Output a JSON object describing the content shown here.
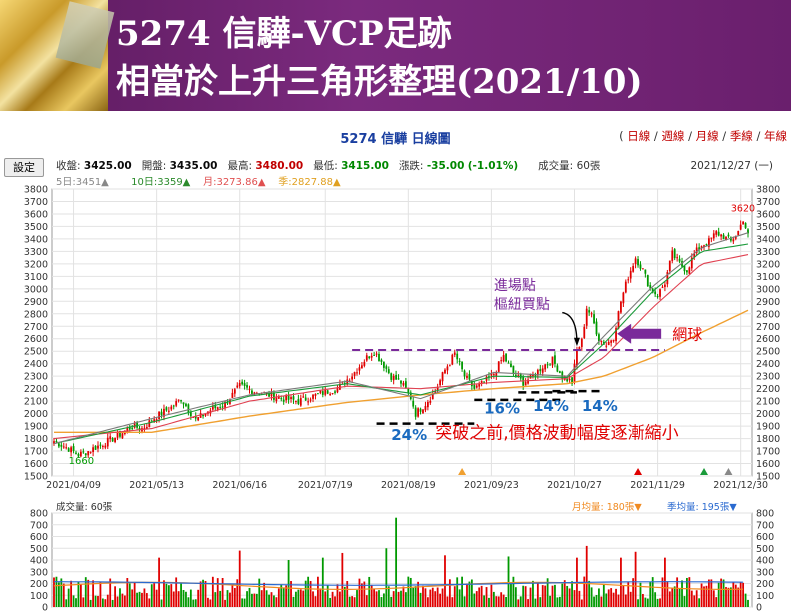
{
  "banner": {
    "title_line1": "5274 信驊-VCP足跡",
    "title_line2": "相當於上升三角形整理(2021/10)"
  },
  "chart_header": {
    "title": "5274 信驊  日線圖",
    "links": [
      "日線",
      "週線",
      "月線",
      "季線",
      "年線"
    ],
    "settings_label": "設定",
    "date": "2021/12/27 (一)"
  },
  "quote": {
    "open_close_label": "收盤:",
    "close": "3425.00",
    "open_label": "開盤:",
    "open": "3435.00",
    "high_label": "最高:",
    "high": "3480.00",
    "low_label": "最低:",
    "low": "3415.00",
    "change_label": "漲跌:",
    "change": "-35.00",
    "change_pct": "(-1.01%)",
    "volume_label": "成交量:",
    "volume": "60張"
  },
  "ma_row": [
    {
      "text": "5日:3451▲",
      "color": "#888888"
    },
    {
      "text": "10日:3359▲",
      "color": "#2a8a2a"
    },
    {
      "text": "月:3273.86▲",
      "color": "#e05050"
    },
    {
      "text": "季:2827.88▲",
      "color": "#e0a020"
    }
  ],
  "colors": {
    "up": "#e00000",
    "down": "#009900",
    "ma5": "#7a7a7a",
    "ma10": "#1a9a3a",
    "ma20": "#e04050",
    "ma60": "#f0a030",
    "annotation_blue": "#1a6abf",
    "annotation_red": "#e00000",
    "annotation_purple": "#7a2a9a",
    "vol_ma_month": "#f08a20",
    "vol_ma_season": "#2a6ad0"
  },
  "chart_data": {
    "type": "candlestick",
    "price_axis": {
      "min": 1500,
      "max": 3800,
      "step": 100
    },
    "x_ticks": [
      "2021/04/09",
      "2021/05/13",
      "2021/06/16",
      "2021/07/19",
      "2021/08/19",
      "2021/09/23",
      "2021/10/27",
      "2021/11/29",
      "2021/12/30"
    ],
    "low_marker": "1660",
    "high_marker": "3620",
    "close_path": [
      [
        0,
        1780
      ],
      [
        6,
        1720
      ],
      [
        10,
        1670
      ],
      [
        14,
        1700
      ],
      [
        20,
        1760
      ],
      [
        26,
        1820
      ],
      [
        32,
        1900
      ],
      [
        36,
        1880
      ],
      [
        42,
        1980
      ],
      [
        48,
        2050
      ],
      [
        52,
        2120
      ],
      [
        58,
        1950
      ],
      [
        64,
        2030
      ],
      [
        70,
        2080
      ],
      [
        76,
        2220
      ],
      [
        82,
        2180
      ],
      [
        88,
        2150
      ],
      [
        94,
        2120
      ],
      [
        100,
        2100
      ],
      [
        106,
        2140
      ],
      [
        112,
        2180
      ],
      [
        116,
        2200
      ],
      [
        122,
        2310
      ],
      [
        128,
        2450
      ],
      [
        131,
        2500
      ],
      [
        134,
        2420
      ],
      [
        138,
        2300
      ],
      [
        142,
        2250
      ],
      [
        146,
        2130
      ],
      [
        148,
        2000
      ],
      [
        152,
        2080
      ],
      [
        156,
        2180
      ],
      [
        160,
        2350
      ],
      [
        164,
        2480
      ],
      [
        168,
        2300
      ],
      [
        172,
        2200
      ],
      [
        176,
        2250
      ],
      [
        180,
        2320
      ],
      [
        184,
        2460
      ],
      [
        188,
        2320
      ],
      [
        192,
        2250
      ],
      [
        196,
        2300
      ],
      [
        200,
        2380
      ],
      [
        204,
        2430
      ],
      [
        208,
        2300
      ],
      [
        212,
        2250
      ],
      [
        214,
        2500
      ],
      [
        216,
        2580
      ],
      [
        218,
        2850
      ],
      [
        220,
        2780
      ],
      [
        223,
        2600
      ],
      [
        226,
        2550
      ],
      [
        229,
        2620
      ],
      [
        232,
        2900
      ],
      [
        235,
        3100
      ],
      [
        238,
        3250
      ],
      [
        241,
        3150
      ],
      [
        244,
        3000
      ],
      [
        247,
        2950
      ],
      [
        250,
        3050
      ],
      [
        253,
        3280
      ],
      [
        256,
        3200
      ],
      [
        259,
        3150
      ],
      [
        262,
        3280
      ],
      [
        265,
        3350
      ],
      [
        268,
        3380
      ],
      [
        271,
        3450
      ],
      [
        274,
        3420
      ],
      [
        277,
        3380
      ],
      [
        280,
        3460
      ],
      [
        282,
        3560
      ],
      [
        284,
        3425
      ]
    ],
    "ma_paths": {
      "ma5": [
        [
          0,
          1760
        ],
        [
          40,
          1960
        ],
        [
          80,
          2150
        ],
        [
          120,
          2260
        ],
        [
          150,
          2120
        ],
        [
          180,
          2330
        ],
        [
          210,
          2300
        ],
        [
          225,
          2620
        ],
        [
          245,
          3020
        ],
        [
          265,
          3330
        ],
        [
          284,
          3450
        ]
      ],
      "ma10": [
        [
          0,
          1760
        ],
        [
          40,
          1930
        ],
        [
          80,
          2140
        ],
        [
          120,
          2240
        ],
        [
          150,
          2150
        ],
        [
          180,
          2300
        ],
        [
          210,
          2290
        ],
        [
          225,
          2560
        ],
        [
          245,
          2980
        ],
        [
          265,
          3300
        ],
        [
          284,
          3359
        ]
      ],
      "ma20": [
        [
          0,
          1800
        ],
        [
          40,
          1880
        ],
        [
          80,
          2100
        ],
        [
          120,
          2220
        ],
        [
          150,
          2200
        ],
        [
          180,
          2250
        ],
        [
          210,
          2280
        ],
        [
          225,
          2450
        ],
        [
          245,
          2850
        ],
        [
          265,
          3200
        ],
        [
          284,
          3274
        ]
      ],
      "ma60": [
        [
          0,
          1850
        ],
        [
          40,
          1850
        ],
        [
          80,
          1980
        ],
        [
          120,
          2090
        ],
        [
          150,
          2150
        ],
        [
          180,
          2200
        ],
        [
          210,
          2240
        ],
        [
          225,
          2300
        ],
        [
          245,
          2450
        ],
        [
          265,
          2650
        ],
        [
          284,
          2828
        ]
      ]
    },
    "resistance": {
      "value": 2510,
      "from": 122,
      "to": 250
    },
    "volume_axis": {
      "min": 0,
      "max": 800,
      "step": 100
    },
    "volume_header": "成交量: 60張",
    "volume_ma_labels": [
      "月均量: 180張▼",
      "季均量: 195張▼"
    ],
    "n_bars": 285
  },
  "annotations": {
    "entry_point": "進場點",
    "pivot_buy": "樞紐買點",
    "net_ball": "網球",
    "pct_24": "24%",
    "pct_16": "16%",
    "pct_14a": "14%",
    "pct_14b": "14%",
    "caption": "突破之前,價格波動幅度逐漸縮小"
  }
}
